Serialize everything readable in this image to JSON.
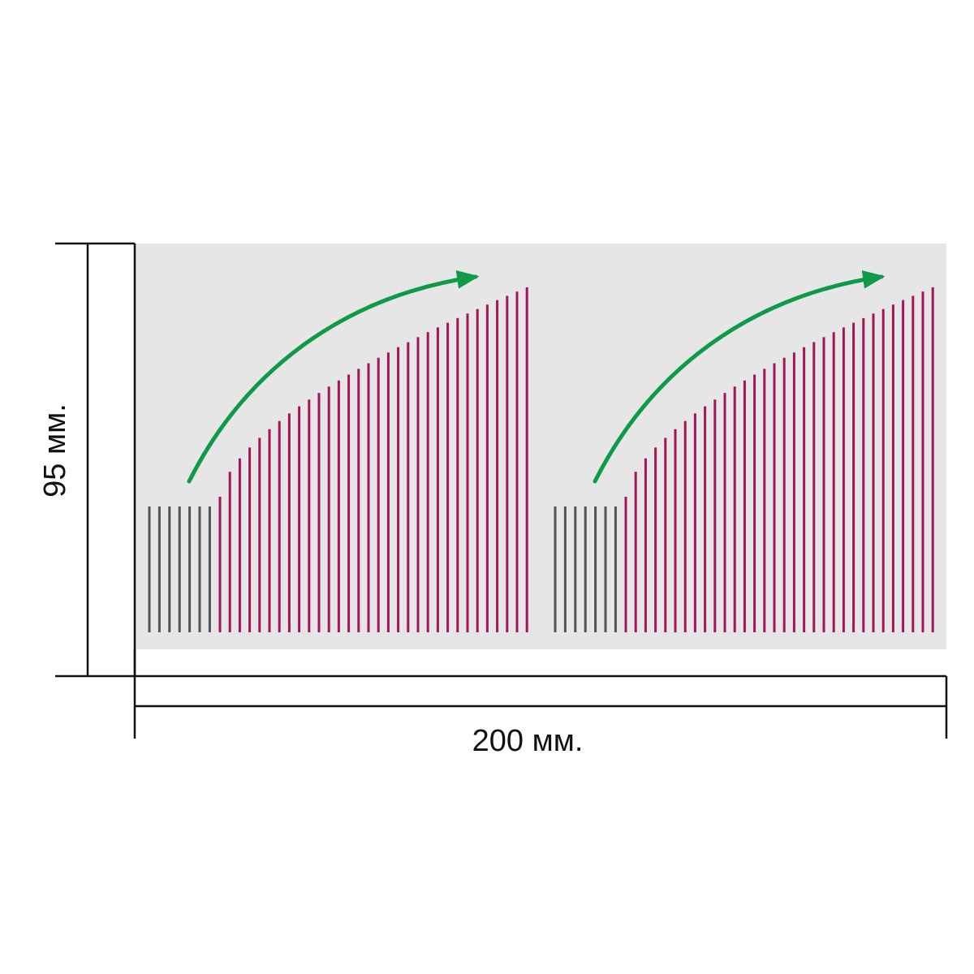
{
  "dimensions": {
    "height_label": "95 мм.",
    "width_label": "200 мм."
  },
  "colors": {
    "background": "#ffffff",
    "panel": "#e6e6e6",
    "gray_line": "#4f5358",
    "magenta_line": "#a3145a",
    "arrow": "#0f9a48",
    "dimension_line": "#111111"
  },
  "pattern": {
    "repeats": 2,
    "gray_lines": 7,
    "magenta_lines": 32,
    "icons": [
      "arrow-curved-icon"
    ]
  }
}
